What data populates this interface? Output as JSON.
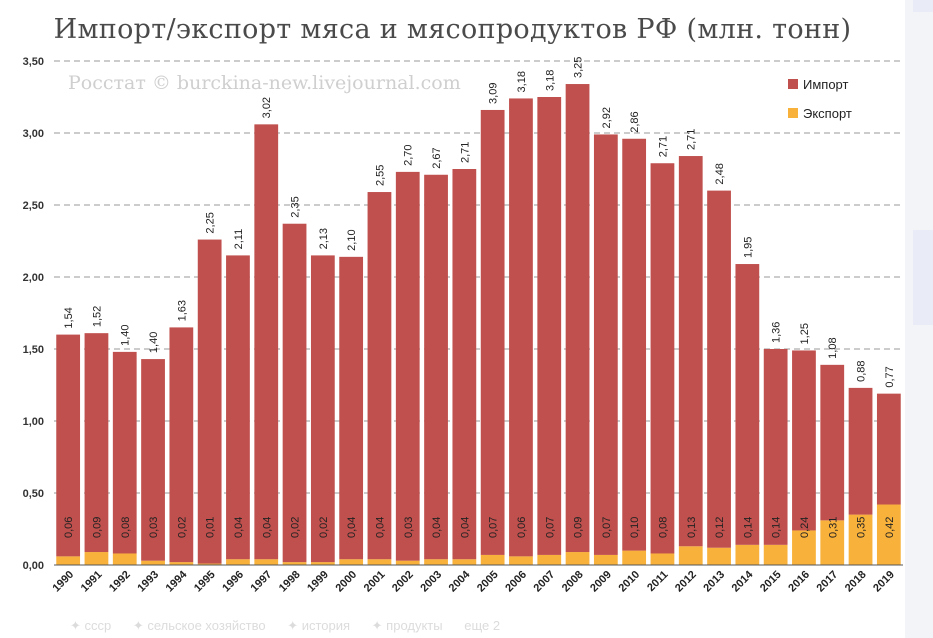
{
  "chart_data": {
    "type": "bar",
    "stacked": true,
    "title": "Импорт/экспорт мяса и мясопродуктов РФ  (млн. тонн)",
    "watermark": "Росстат © burckina-new.livejournal.com",
    "ylim": [
      0,
      3.5
    ],
    "yticks": [
      "0,00",
      "0,50",
      "1,00",
      "1,50",
      "2,00",
      "2,50",
      "3,00",
      "3,50"
    ],
    "grid": true,
    "legend_position": "top-right",
    "categories": [
      "1990",
      "1991",
      "1992",
      "1993",
      "1994",
      "1995",
      "1996",
      "1997",
      "1998",
      "1999",
      "2000",
      "2001",
      "2002",
      "2003",
      "2004",
      "2005",
      "2006",
      "2007",
      "2008",
      "2009",
      "2010",
      "2011",
      "2012",
      "2013",
      "2014",
      "2015",
      "2016",
      "2017",
      "2018",
      "2019"
    ],
    "series": [
      {
        "name": "Импорт",
        "color": "#c0504d",
        "values": [
          1.54,
          1.52,
          1.4,
          1.4,
          1.63,
          2.25,
          2.11,
          3.02,
          2.35,
          2.13,
          2.1,
          2.55,
          2.7,
          2.67,
          2.71,
          3.09,
          3.18,
          3.18,
          3.25,
          2.92,
          2.86,
          2.71,
          2.71,
          2.48,
          1.95,
          1.36,
          1.25,
          1.08,
          0.88,
          0.77
        ],
        "labels": [
          "1,54",
          "1,52",
          "1,40",
          "1,40",
          "1,63",
          "2,25",
          "2,11",
          "3,02",
          "2,35",
          "2,13",
          "2,10",
          "2,55",
          "2,70",
          "2,67",
          "2,71",
          "3,09",
          "3,18",
          "3,18",
          "3,25",
          "2,92",
          "2,86",
          "2,71",
          "2,71",
          "2,48",
          "1,95",
          "1,36",
          "1,25",
          "1,08",
          "0,88",
          "0,77"
        ]
      },
      {
        "name": "Экспорт",
        "color": "#f8b13a",
        "values": [
          0.06,
          0.09,
          0.08,
          0.03,
          0.02,
          0.01,
          0.04,
          0.04,
          0.02,
          0.02,
          0.04,
          0.04,
          0.03,
          0.04,
          0.04,
          0.07,
          0.06,
          0.07,
          0.09,
          0.07,
          0.1,
          0.08,
          0.13,
          0.12,
          0.14,
          0.14,
          0.24,
          0.31,
          0.35,
          0.42
        ],
        "labels": [
          "0,06",
          "0,09",
          "0,08",
          "0,03",
          "0,02",
          "0,01",
          "0,04",
          "0,04",
          "0,02",
          "0,02",
          "0,04",
          "0,04",
          "0,03",
          "0,04",
          "0,04",
          "0,07",
          "0,06",
          "0,07",
          "0,09",
          "0,07",
          "0,10",
          "0,08",
          "0,13",
          "0,12",
          "0,14",
          "0,14",
          "0,24",
          "0,31",
          "0,35",
          "0,42"
        ]
      }
    ]
  },
  "footer_tags": [
    "✦ ссср",
    "✦ сельское хозяйство",
    "✦ история",
    "✦ продукты",
    "еще 2"
  ]
}
